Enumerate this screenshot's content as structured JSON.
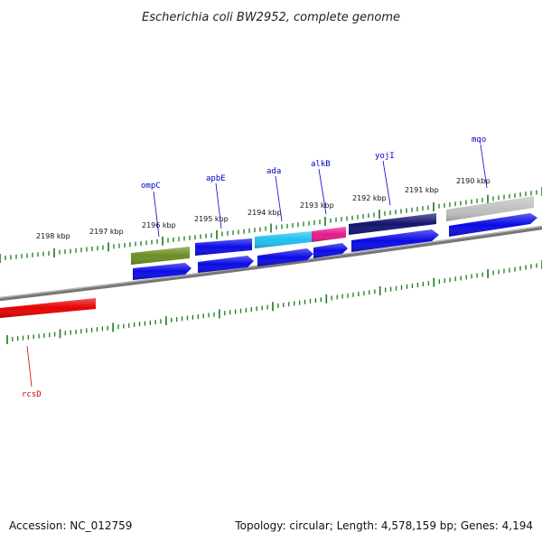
{
  "title": "Escherichia coli BW2952, complete genome",
  "footer": {
    "accession": "Accession: NC_012759",
    "summary": "Topology: circular; Length: 4,578,159 bp; Genes: 4,194"
  },
  "colors": {
    "backbone": "#888888",
    "tick": "#1a7a1a",
    "cds": "#0a0ae6",
    "label_forward": "#0000cc",
    "label_reverse": "#cc0000"
  },
  "scale_labels": [
    "2198 kbp",
    "2197 kbp",
    "2196 kbp",
    "2195 kbp",
    "2194 kbp",
    "2193 kbp",
    "2192 kbp",
    "2191 kbp",
    "2190 kbp"
  ],
  "genes": [
    {
      "name": "ompC",
      "color": "#6b8e23"
    },
    {
      "name": "apbE",
      "color": "#0a0ae6"
    },
    {
      "name": "ada",
      "color": "#1ec0f0"
    },
    {
      "name": "alkB",
      "color": "#e6198c"
    },
    {
      "name": "yojI",
      "color": "#14146e"
    },
    {
      "name": "mqo",
      "color": "#c0c0c0"
    },
    {
      "name": "rcsD",
      "color": "#e60000"
    }
  ]
}
